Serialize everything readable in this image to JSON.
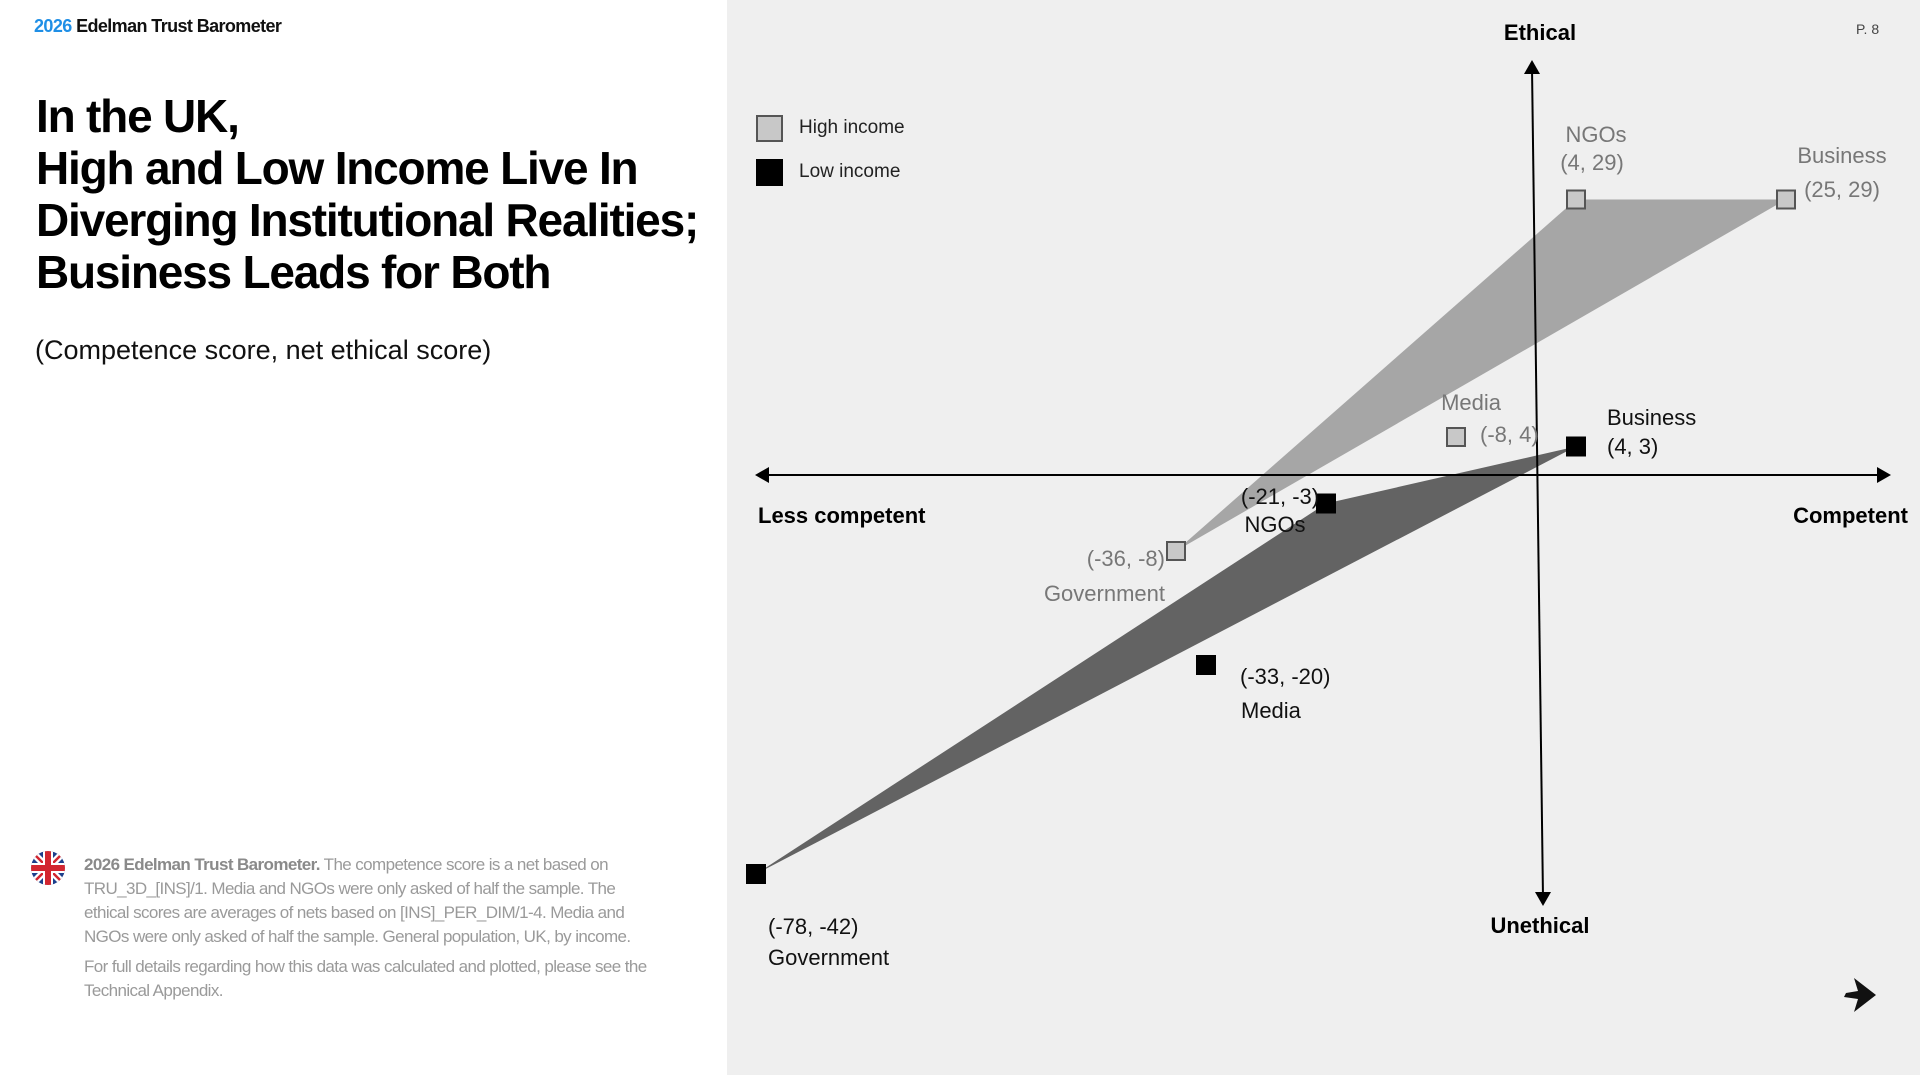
{
  "brand": {
    "year": "2026",
    "name": "Edelman Trust Barometer"
  },
  "page_number": "P. 8",
  "title_lines": [
    "In the UK,",
    "High and Low Income Live In",
    "Diverging Institutional Realities;",
    "Business Leads for Both"
  ],
  "subtitle": "(Competence score, net ethical score)",
  "footnote": {
    "bold": "2026 Edelman Trust Barometer.",
    "text": "The competence score is a net based on TRU_3D_[INS]/1. Media and NGOs were only asked of half the sample. The ethical scores are averages of nets based on [INS]_PER_DIM/1-4. Media and NGOs were only asked of half the sample. General population, UK, by income.",
    "text2": "For full details regarding how this data was calculated and plotted, please see the Technical Appendix."
  },
  "icons": {
    "flag": "uk-flag-icon",
    "next": "next-arrow-icon"
  },
  "colors": {
    "high_fill": "#a6a6a6",
    "low_fill": "#636363",
    "high_marker": "#c8c8c8",
    "low_marker": "#000000",
    "high_text": "#777777",
    "low_text": "#111111",
    "brand_blue": "#1f8fe6"
  },
  "chart_data": {
    "type": "scatter",
    "axes": {
      "x_positive": "Competent",
      "x_negative": "Less competent",
      "y_positive": "Ethical",
      "y_negative": "Unethical",
      "xlim": [
        -80,
        35
      ],
      "ylim": [
        -45,
        40
      ]
    },
    "legend": [
      "High income",
      "Low income"
    ],
    "series": [
      {
        "name": "High income",
        "points": [
          {
            "label": "Business",
            "x": 25,
            "y": 29,
            "coord": "(25, 29)"
          },
          {
            "label": "NGOs",
            "x": 4,
            "y": 29,
            "coord": "(4, 29)"
          },
          {
            "label": "Media",
            "x": -8,
            "y": 4,
            "coord": "(-8, 4)"
          },
          {
            "label": "Government",
            "x": -36,
            "y": -8,
            "coord": "(-36, -8)"
          }
        ]
      },
      {
        "name": "Low income",
        "points": [
          {
            "label": "Business",
            "x": 4,
            "y": 3,
            "coord": "(4, 3)"
          },
          {
            "label": "NGOs",
            "x": -21,
            "y": -3,
            "coord": "(-21, -3)"
          },
          {
            "label": "Media",
            "x": -33,
            "y": -20,
            "coord": "(-33, -20)"
          },
          {
            "label": "Government",
            "x": -78,
            "y": -42,
            "coord": "(-78, -42)"
          }
        ]
      }
    ]
  }
}
